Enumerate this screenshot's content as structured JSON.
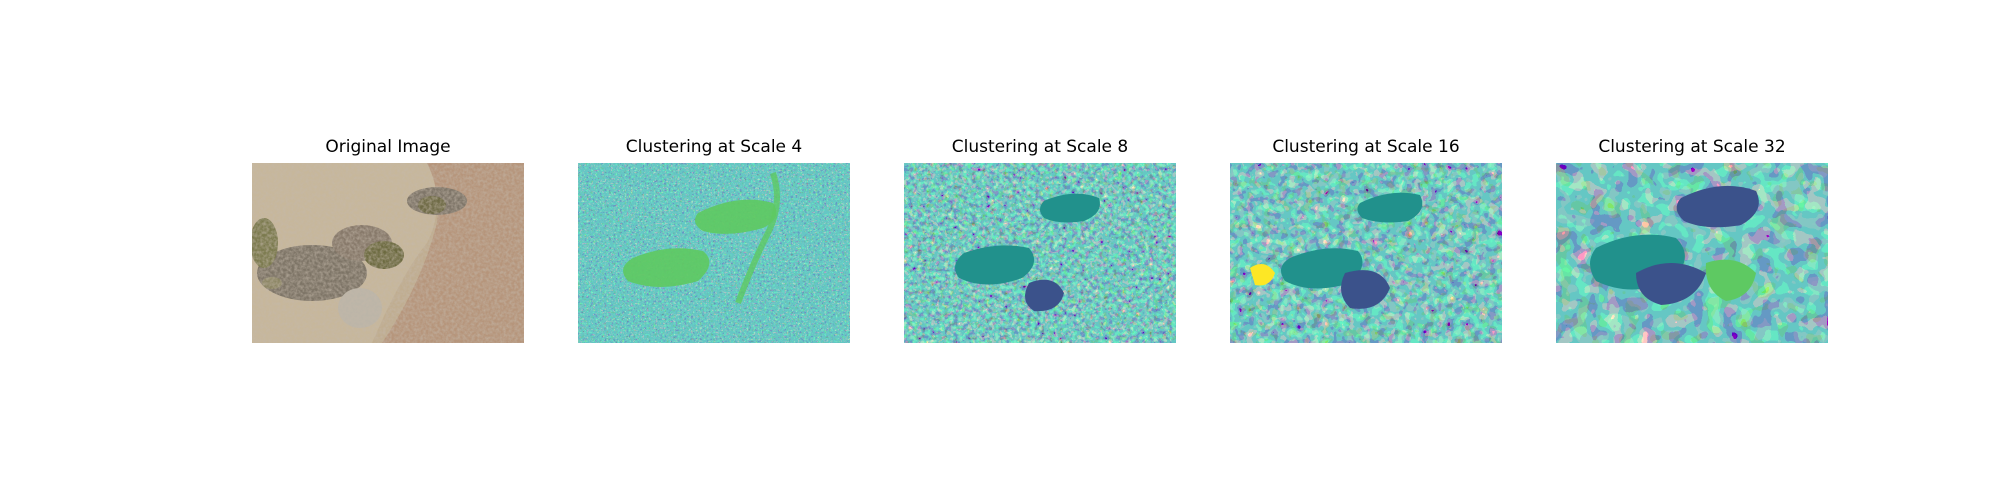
{
  "figure": {
    "panels": [
      {
        "title": "Original Image",
        "kind": "photo",
        "image": "aerial photo of dry sandy ground with shrubs and their shadows"
      },
      {
        "title": "Clustering at Scale 4",
        "kind": "segmentation",
        "scale": 4
      },
      {
        "title": "Clustering at Scale 8",
        "kind": "segmentation",
        "scale": 8
      },
      {
        "title": "Clustering at Scale 16",
        "kind": "segmentation",
        "scale": 16
      },
      {
        "title": "Clustering at Scale 32",
        "kind": "segmentation",
        "scale": 32
      }
    ],
    "colormap": "viridis",
    "cluster_colors": [
      "#440154",
      "#3b528b",
      "#21918c",
      "#5ec962",
      "#fde725"
    ]
  }
}
